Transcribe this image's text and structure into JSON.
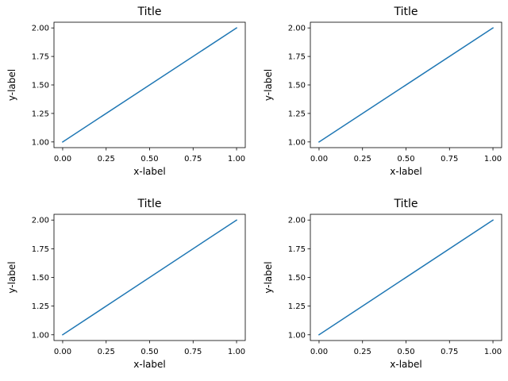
{
  "chart_data": [
    {
      "type": "line",
      "title": "Title",
      "xlabel": "x-label",
      "ylabel": "y-label",
      "xlim": [
        -0.05,
        1.05
      ],
      "ylim": [
        0.95,
        2.05
      ],
      "xticks": [
        "0.00",
        "0.25",
        "0.50",
        "0.75",
        "1.00"
      ],
      "yticks": [
        "1.00",
        "1.25",
        "1.50",
        "1.75",
        "2.00"
      ],
      "grid": false,
      "series": [
        {
          "x": [
            0,
            1
          ],
          "y": [
            1,
            2
          ],
          "color": "#1f77b4"
        }
      ]
    },
    {
      "type": "line",
      "title": "Title",
      "xlabel": "x-label",
      "ylabel": "y-label",
      "xlim": [
        -0.05,
        1.05
      ],
      "ylim": [
        0.95,
        2.05
      ],
      "xticks": [
        "0.00",
        "0.25",
        "0.50",
        "0.75",
        "1.00"
      ],
      "yticks": [
        "1.00",
        "1.25",
        "1.50",
        "1.75",
        "2.00"
      ],
      "grid": false,
      "series": [
        {
          "x": [
            0,
            1
          ],
          "y": [
            1,
            2
          ],
          "color": "#1f77b4"
        }
      ]
    },
    {
      "type": "line",
      "title": "Title",
      "xlabel": "x-label",
      "ylabel": "y-label",
      "xlim": [
        -0.05,
        1.05
      ],
      "ylim": [
        0.95,
        2.05
      ],
      "xticks": [
        "0.00",
        "0.25",
        "0.50",
        "0.75",
        "1.00"
      ],
      "yticks": [
        "1.00",
        "1.25",
        "1.50",
        "1.75",
        "2.00"
      ],
      "grid": false,
      "series": [
        {
          "x": [
            0,
            1
          ],
          "y": [
            1,
            2
          ],
          "color": "#1f77b4"
        }
      ]
    },
    {
      "type": "line",
      "title": "Title",
      "xlabel": "x-label",
      "ylabel": "y-label",
      "xlim": [
        -0.05,
        1.05
      ],
      "ylim": [
        0.95,
        2.05
      ],
      "xticks": [
        "0.00",
        "0.25",
        "0.50",
        "0.75",
        "1.00"
      ],
      "yticks": [
        "1.00",
        "1.25",
        "1.50",
        "1.75",
        "2.00"
      ],
      "grid": false,
      "series": [
        {
          "x": [
            0,
            1
          ],
          "y": [
            1,
            2
          ],
          "color": "#1f77b4"
        }
      ]
    }
  ]
}
